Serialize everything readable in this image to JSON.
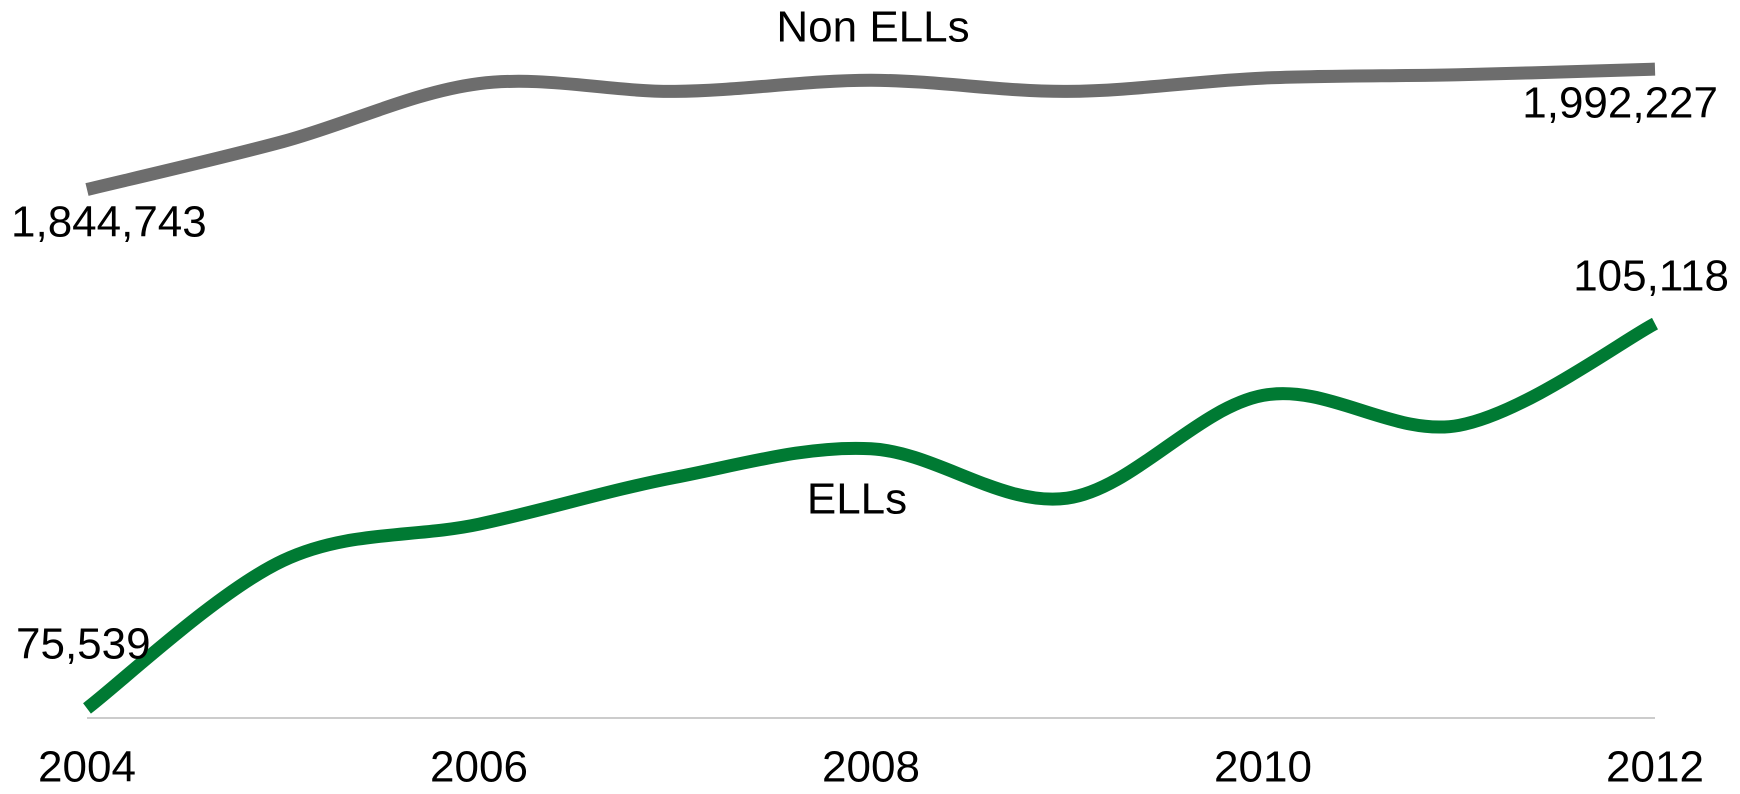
{
  "chart_data": {
    "type": "line",
    "x": [
      2004,
      2005,
      2006,
      2007,
      2008,
      2009,
      2010,
      2011,
      2012
    ],
    "xlim": [
      2004,
      2012
    ],
    "xticks": [
      2004,
      2006,
      2008,
      2010,
      2012
    ],
    "ylim": [
      74800,
      130000
    ],
    "y2lim": [
      1197000,
      2077000
    ],
    "series": [
      {
        "name": "Non ELLs",
        "color": "#6d6d6d",
        "axis": "y2",
        "values": [
          1844743,
          1903500,
          1974500,
          1965000,
          1978600,
          1965000,
          1981300,
          1985400,
          1992227
        ],
        "value_labels": [
          "1,844,743",
          null,
          null,
          null,
          null,
          null,
          null,
          null,
          "1,992,227"
        ]
      },
      {
        "name": "ELLs",
        "color": "#007a33",
        "values": [
          75539,
          86900,
          89700,
          93300,
          95500,
          91700,
          99600,
          97300,
          105118
        ],
        "value_labels": [
          "75,539",
          null,
          null,
          null,
          null,
          null,
          null,
          null,
          "105,118"
        ]
      }
    ]
  }
}
